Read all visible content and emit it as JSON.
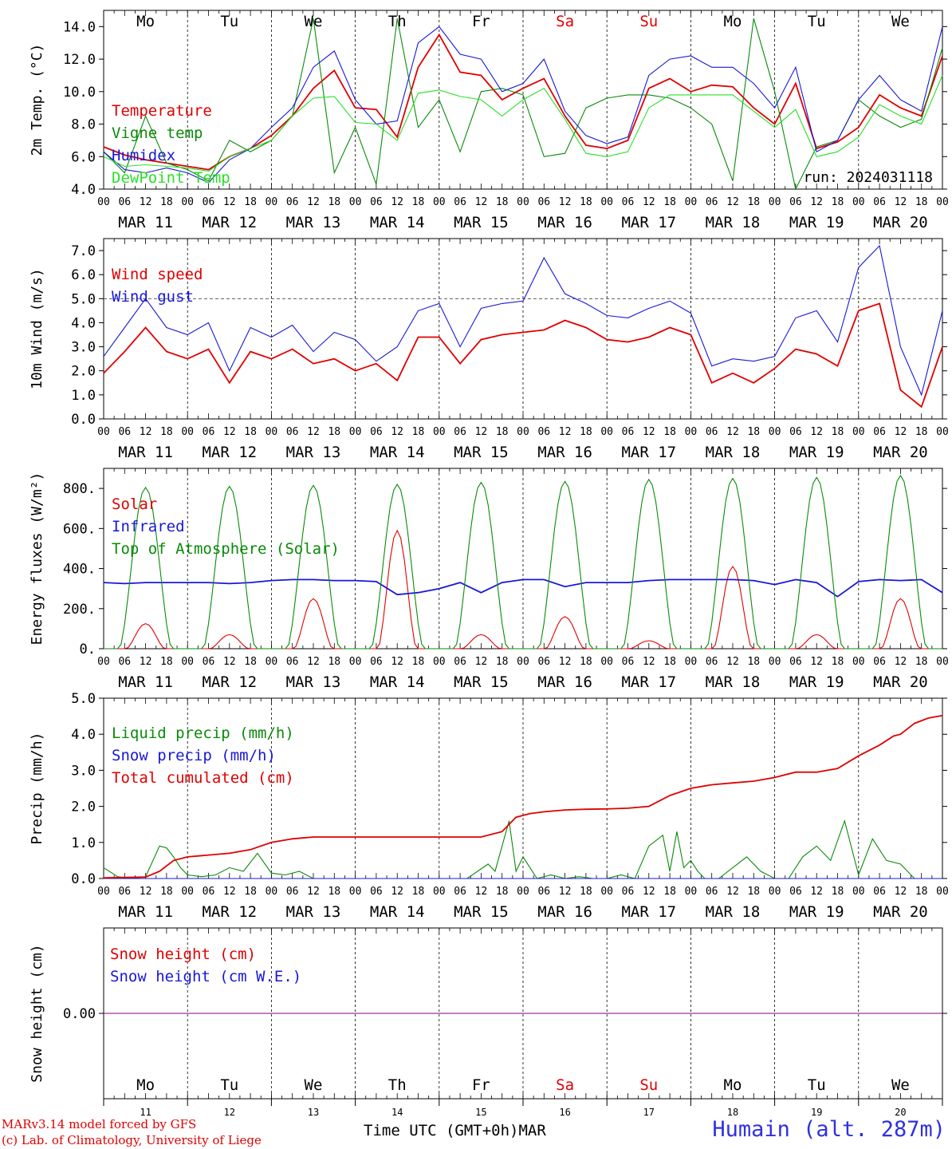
{
  "run_label": "run: 2024031118",
  "credits": [
    "MARv3.14 model forced by GFS",
    "(c) Lab. of Climatology, University of Liege"
  ],
  "x_axis_title": "Time UTC (GMT+0h)MAR",
  "station": "Humain (alt. 287m)",
  "colors": {
    "red": "#e00000",
    "green": "#0a8a0a",
    "blue": "#1818d8",
    "lightgreen": "#28e028",
    "purple": "#800080"
  },
  "days": [
    {
      "dow": "Mo",
      "date": "MAR 11",
      "num": "11",
      "weekend": false
    },
    {
      "dow": "Tu",
      "date": "MAR 12",
      "num": "12",
      "weekend": false
    },
    {
      "dow": "We",
      "date": "MAR 13",
      "num": "13",
      "weekend": false
    },
    {
      "dow": "Th",
      "date": "MAR 14",
      "num": "14",
      "weekend": false
    },
    {
      "dow": "Fr",
      "date": "MAR 15",
      "num": "15",
      "weekend": false
    },
    {
      "dow": "Sa",
      "date": "MAR 16",
      "num": "16",
      "weekend": true
    },
    {
      "dow": "Su",
      "date": "MAR 17",
      "num": "17",
      "weekend": true
    },
    {
      "dow": "Mo",
      "date": "MAR 18",
      "num": "18",
      "weekend": false
    },
    {
      "dow": "Tu",
      "date": "MAR 19",
      "num": "19",
      "weekend": false
    },
    {
      "dow": "We",
      "date": "MAR 20",
      "num": "20",
      "weekend": false
    }
  ],
  "hour_ticks": [
    "00",
    "06",
    "12",
    "18"
  ],
  "chart_data": [
    {
      "type": "line",
      "ylabel": "2m Temp. (°C)",
      "ylim": [
        4.0,
        15.0
      ],
      "yticks": [
        "4.0",
        "6.0",
        "8.0",
        "10.0",
        "12.0",
        "14.0"
      ],
      "x_unit": "hours since MAR 11 00 UTC",
      "series": [
        {
          "name": "Temperature",
          "color": "red",
          "x": [
            0,
            6,
            12,
            18,
            24,
            30,
            36,
            42,
            48,
            54,
            60,
            66,
            72,
            78,
            84,
            90,
            96,
            102,
            108,
            114,
            120,
            126,
            132,
            138,
            144,
            150,
            156,
            162,
            168,
            174,
            180,
            186,
            192,
            198,
            204,
            210,
            216,
            222,
            228,
            234,
            240
          ],
          "y": [
            6.6,
            6.1,
            5.8,
            5.6,
            5.4,
            5.2,
            6.0,
            6.5,
            7.3,
            8.5,
            10.2,
            11.3,
            9.0,
            8.9,
            7.2,
            11.5,
            13.5,
            11.2,
            11.0,
            9.5,
            10.2,
            10.8,
            8.5,
            6.7,
            6.5,
            7.0,
            10.2,
            10.8,
            10.0,
            10.4,
            10.3,
            9.0,
            8.0,
            10.5,
            6.5,
            6.9,
            7.8,
            9.8,
            9.0,
            8.5,
            12.2
          ]
        },
        {
          "name": "Vigne temp",
          "color": "green",
          "x": [
            0,
            6,
            12,
            18,
            24,
            30,
            36,
            42,
            48,
            54,
            60,
            66,
            72,
            78,
            84,
            90,
            96,
            102,
            108,
            114,
            120,
            126,
            132,
            138,
            144,
            150,
            156,
            162,
            168,
            174,
            180,
            186,
            192,
            198,
            204,
            210,
            216,
            222,
            228,
            234,
            240
          ],
          "y": [
            6.3,
            5.0,
            8.5,
            5.6,
            5.2,
            4.5,
            7.0,
            6.3,
            7.0,
            8.5,
            14.5,
            5.0,
            7.8,
            4.3,
            14.5,
            7.8,
            9.5,
            6.3,
            10.0,
            10.2,
            9.8,
            6.0,
            6.2,
            9.0,
            9.6,
            9.8,
            9.8,
            9.6,
            9.0,
            8.0,
            4.5,
            14.5,
            10.0,
            4.0,
            6.6,
            7.0,
            9.5,
            8.5,
            7.8,
            8.3,
            12.7
          ]
        },
        {
          "name": "Humidex",
          "color": "blue",
          "x": [
            0,
            6,
            12,
            18,
            24,
            30,
            36,
            42,
            48,
            54,
            60,
            66,
            72,
            78,
            84,
            90,
            96,
            102,
            108,
            114,
            120,
            126,
            132,
            138,
            144,
            150,
            156,
            162,
            168,
            174,
            180,
            186,
            192,
            198,
            204,
            210,
            216,
            222,
            228,
            234,
            240
          ],
          "y": [
            6.3,
            5.2,
            5.0,
            5.3,
            5.0,
            4.4,
            5.8,
            6.5,
            7.8,
            9.0,
            11.5,
            12.5,
            9.5,
            8.0,
            8.2,
            13.0,
            14.0,
            12.3,
            12.0,
            10.0,
            10.5,
            12.0,
            8.8,
            7.3,
            6.8,
            7.2,
            11.0,
            12.0,
            12.2,
            11.5,
            11.5,
            10.5,
            9.0,
            11.5,
            6.3,
            7.0,
            9.5,
            11.0,
            9.5,
            8.8,
            14.0
          ]
        },
        {
          "name": "DewPoint Temp",
          "color": "lightgreen",
          "x": [
            0,
            6,
            12,
            18,
            24,
            30,
            36,
            42,
            48,
            54,
            60,
            66,
            72,
            78,
            84,
            90,
            96,
            102,
            108,
            114,
            120,
            126,
            132,
            138,
            144,
            150,
            156,
            162,
            168,
            174,
            180,
            186,
            192,
            198,
            204,
            210,
            216,
            222,
            228,
            234,
            240
          ],
          "y": [
            6.0,
            5.4,
            5.5,
            5.4,
            5.3,
            5.1,
            6.0,
            6.5,
            7.0,
            8.5,
            9.6,
            9.7,
            8.1,
            8.0,
            7.0,
            9.9,
            10.1,
            9.7,
            9.5,
            8.5,
            9.5,
            10.2,
            8.3,
            6.2,
            6.0,
            6.3,
            9.0,
            9.8,
            9.8,
            9.8,
            9.8,
            8.8,
            7.8,
            8.9,
            6.0,
            6.3,
            7.2,
            9.2,
            8.5,
            8.0,
            11.0
          ]
        }
      ]
    },
    {
      "type": "line",
      "ylabel": "10m Wind (m/s)",
      "ylim": [
        0.0,
        7.5
      ],
      "yticks": [
        "0.0",
        "1.0",
        "2.0",
        "3.0",
        "4.0",
        "5.0",
        "6.0",
        "7.0"
      ],
      "reference_line": 5.0,
      "series": [
        {
          "name": "Wind speed",
          "color": "red",
          "x": [
            0,
            6,
            12,
            18,
            24,
            30,
            36,
            42,
            48,
            54,
            60,
            66,
            72,
            78,
            84,
            90,
            96,
            102,
            108,
            114,
            120,
            126,
            132,
            138,
            144,
            150,
            156,
            162,
            168,
            174,
            180,
            186,
            192,
            198,
            204,
            210,
            216,
            222,
            228,
            234,
            240
          ],
          "y": [
            1.9,
            2.8,
            3.8,
            2.8,
            2.5,
            2.9,
            1.5,
            2.8,
            2.5,
            2.9,
            2.3,
            2.5,
            2.0,
            2.3,
            1.6,
            3.4,
            3.4,
            2.3,
            3.3,
            3.5,
            3.6,
            3.7,
            4.1,
            3.8,
            3.3,
            3.2,
            3.4,
            3.8,
            3.5,
            1.5,
            1.9,
            1.5,
            2.1,
            2.9,
            2.7,
            2.2,
            4.5,
            4.8,
            1.2,
            0.5,
            3.0
          ]
        },
        {
          "name": "Wind gust",
          "color": "blue",
          "x": [
            0,
            6,
            12,
            18,
            24,
            30,
            36,
            42,
            48,
            54,
            60,
            66,
            72,
            78,
            84,
            90,
            96,
            102,
            108,
            114,
            120,
            126,
            132,
            138,
            144,
            150,
            156,
            162,
            168,
            174,
            180,
            186,
            192,
            198,
            204,
            210,
            216,
            222,
            228,
            234,
            240
          ],
          "y": [
            2.6,
            3.8,
            5.0,
            3.8,
            3.5,
            4.0,
            2.0,
            3.8,
            3.4,
            3.9,
            2.8,
            3.6,
            3.3,
            2.4,
            3.0,
            4.5,
            4.8,
            3.0,
            4.6,
            4.8,
            4.9,
            6.7,
            5.2,
            4.8,
            4.3,
            4.2,
            4.6,
            4.9,
            4.4,
            2.2,
            2.5,
            2.4,
            2.6,
            4.2,
            4.5,
            3.2,
            6.3,
            7.2,
            3.0,
            1.0,
            4.5
          ]
        }
      ]
    },
    {
      "type": "line",
      "ylabel": "Energy fluxes (W/m²)",
      "ylim": [
        0,
        900
      ],
      "yticks": [
        "0.",
        "200.",
        "400.",
        "600.",
        "800."
      ],
      "series": [
        {
          "name": "Solar",
          "color": "red",
          "peaks": [
            {
              "day": 0,
              "max": 125
            },
            {
              "day": 1,
              "max": 70
            },
            {
              "day": 2,
              "max": 250
            },
            {
              "day": 3,
              "max": 590
            },
            {
              "day": 4,
              "max": 70
            },
            {
              "day": 5,
              "max": 160
            },
            {
              "day": 6,
              "max": 40
            },
            {
              "day": 7,
              "max": 410
            },
            {
              "day": 8,
              "max": 70
            },
            {
              "day": 9,
              "max": 250
            }
          ]
        },
        {
          "name": "Infrared",
          "color": "blue",
          "x": [
            0,
            6,
            12,
            18,
            24,
            30,
            36,
            42,
            48,
            54,
            60,
            66,
            72,
            78,
            84,
            90,
            96,
            102,
            108,
            114,
            120,
            126,
            132,
            138,
            144,
            150,
            156,
            162,
            168,
            174,
            180,
            186,
            192,
            198,
            204,
            210,
            216,
            222,
            228,
            234,
            240
          ],
          "y": [
            330,
            325,
            330,
            330,
            330,
            330,
            325,
            330,
            340,
            345,
            345,
            340,
            340,
            335,
            270,
            280,
            300,
            330,
            280,
            330,
            345,
            345,
            310,
            330,
            330,
            330,
            340,
            345,
            345,
            345,
            345,
            340,
            320,
            345,
            330,
            260,
            335,
            345,
            340,
            345,
            280
          ]
        },
        {
          "name": "Top of Atmosphere (Solar)",
          "color": "green",
          "peaks": [
            {
              "day": 0,
              "max": 805
            },
            {
              "day": 1,
              "max": 810
            },
            {
              "day": 2,
              "max": 815
            },
            {
              "day": 3,
              "max": 820
            },
            {
              "day": 4,
              "max": 830
            },
            {
              "day": 5,
              "max": 835
            },
            {
              "day": 6,
              "max": 845
            },
            {
              "day": 7,
              "max": 850
            },
            {
              "day": 8,
              "max": 855
            },
            {
              "day": 9,
              "max": 865
            }
          ]
        }
      ]
    },
    {
      "type": "line",
      "ylabel": "Precip (mm/h)",
      "ylim": [
        0.0,
        5.0
      ],
      "yticks": [
        "0.0",
        "1.0",
        "2.0",
        "3.0",
        "4.0",
        "5.0"
      ],
      "series": [
        {
          "name": "Liquid precip (mm/h)",
          "color": "green",
          "x": [
            0,
            4,
            8,
            12,
            16,
            18,
            20,
            22,
            24,
            28,
            32,
            36,
            40,
            44,
            48,
            52,
            56,
            60,
            64,
            68,
            72,
            80,
            96,
            104,
            110,
            112,
            114,
            116,
            118,
            120,
            124,
            128,
            132,
            136,
            140,
            144,
            148,
            152,
            156,
            160,
            162,
            164,
            166,
            168,
            170,
            172,
            176,
            180,
            184,
            188,
            192,
            196,
            200,
            204,
            208,
            212,
            216,
            220,
            224,
            228,
            232,
            236,
            240
          ],
          "y": [
            0.3,
            0.05,
            0.0,
            0.05,
            0.9,
            0.85,
            0.6,
            0.3,
            0.1,
            0.05,
            0.1,
            0.3,
            0.2,
            0.7,
            0.15,
            0.1,
            0.2,
            0.0,
            0.0,
            0.0,
            0.0,
            0.0,
            0.0,
            0.0,
            0.4,
            0.2,
            0.9,
            1.6,
            0.2,
            0.6,
            0.0,
            0.1,
            0.0,
            0.05,
            0.0,
            0.0,
            0.1,
            0.0,
            0.9,
            1.2,
            0.2,
            1.3,
            0.3,
            0.5,
            0.2,
            0.0,
            0.0,
            0.3,
            0.6,
            0.2,
            0.0,
            0.0,
            0.6,
            0.9,
            0.5,
            1.6,
            0.1,
            1.1,
            0.5,
            0.4,
            0.0,
            0.0,
            0.0
          ]
        },
        {
          "name": "Snow precip (mm/h)",
          "color": "blue",
          "x": [
            0,
            240
          ],
          "y": [
            0,
            0
          ]
        },
        {
          "name": "Total cumulated (cm)",
          "color": "red",
          "x": [
            0,
            12,
            16,
            20,
            24,
            30,
            36,
            42,
            48,
            54,
            60,
            66,
            72,
            78,
            84,
            90,
            96,
            102,
            108,
            114,
            118,
            122,
            126,
            132,
            138,
            144,
            150,
            156,
            162,
            168,
            174,
            180,
            186,
            192,
            198,
            204,
            210,
            216,
            222,
            226,
            228,
            232,
            236,
            240
          ],
          "y": [
            0.02,
            0.04,
            0.2,
            0.5,
            0.6,
            0.65,
            0.7,
            0.8,
            1.0,
            1.1,
            1.15,
            1.15,
            1.15,
            1.15,
            1.15,
            1.15,
            1.15,
            1.15,
            1.15,
            1.3,
            1.7,
            1.8,
            1.85,
            1.9,
            1.92,
            1.93,
            1.95,
            2.0,
            2.3,
            2.5,
            2.6,
            2.65,
            2.7,
            2.8,
            2.95,
            2.95,
            3.05,
            3.4,
            3.7,
            3.95,
            4.0,
            4.3,
            4.45,
            4.52
          ]
        }
      ]
    },
    {
      "type": "line",
      "ylabel": "Snow height (cm)",
      "yticks": [
        "0.00"
      ],
      "series": [
        {
          "name": "Snow height (cm)",
          "color": "red",
          "x": [
            0,
            240
          ],
          "y": [
            0,
            0
          ]
        },
        {
          "name": "Snow height (cm W.E.)",
          "color": "blue",
          "x": [
            0,
            240
          ],
          "y": [
            0,
            0
          ]
        }
      ]
    }
  ]
}
